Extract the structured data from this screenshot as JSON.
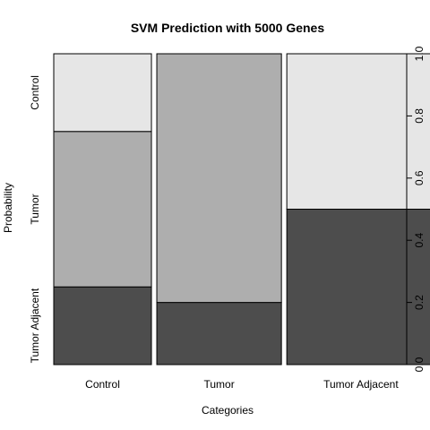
{
  "chart_data": {
    "type": "bar",
    "subtype": "spine-plot (stacked proportions, variable widths)",
    "title": "SVM Prediction with 5000 Genes",
    "xlabel": "Categories",
    "ylabel": "Probability",
    "ylim": [
      0,
      1
    ],
    "grid": false,
    "categories": [
      "Control",
      "Tumor",
      "Tumor Adjacent"
    ],
    "category_widths": [
      0.29,
      0.37,
      0.44
    ],
    "series": [
      {
        "name": "Tumor Adjacent",
        "color": "#4d4d4d",
        "values": [
          0.25,
          0.2,
          0.5
        ]
      },
      {
        "name": "Tumor",
        "color": "#aeaeae",
        "values": [
          0.5,
          0.8,
          0.0
        ]
      },
      {
        "name": "Control",
        "color": "#e6e6e6",
        "values": [
          0.25,
          0.0,
          0.5
        ]
      }
    ],
    "left_axis_labels": [
      "Tumor Adjacent",
      "Tumor",
      "Control"
    ],
    "right_axis_ticks": [
      "0.0",
      "0.2",
      "0.4",
      "0.6",
      "0.8",
      "1.0"
    ]
  }
}
